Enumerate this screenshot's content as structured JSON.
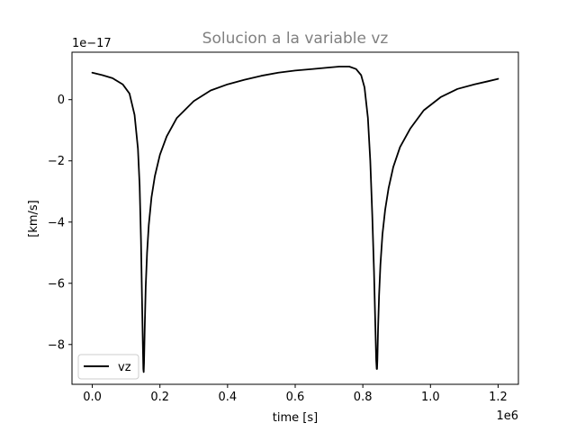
{
  "chart_data": {
    "type": "line",
    "title": "Solucion a la variable vz",
    "xlabel": "time [s]",
    "ylabel": "[km/s]",
    "x_offset_label": "1e6",
    "y_offset_label": "1e−17",
    "xlim": [
      -60000,
      1260000
    ],
    "ylim": [
      -9.3,
      1.55
    ],
    "grid": false,
    "legend_position": "lower-left",
    "x_ticks": [
      {
        "value": 0,
        "label": "0.0"
      },
      {
        "value": 200000,
        "label": "0.2"
      },
      {
        "value": 400000,
        "label": "0.4"
      },
      {
        "value": 600000,
        "label": "0.6"
      },
      {
        "value": 800000,
        "label": "0.8"
      },
      {
        "value": 1000000,
        "label": "1.0"
      },
      {
        "value": 1200000,
        "label": "1.2"
      }
    ],
    "y_ticks": [
      {
        "value": 0,
        "label": "0"
      },
      {
        "value": -2,
        "label": "−2"
      },
      {
        "value": -4,
        "label": "−4"
      },
      {
        "value": -6,
        "label": "−6"
      },
      {
        "value": -8,
        "label": "−8"
      }
    ],
    "series": [
      {
        "name": "vz",
        "color": "#000000",
        "x": [
          0,
          30000,
          60000,
          90000,
          110000,
          125000,
          135000,
          140000,
          144000,
          147000,
          149500,
          151000,
          152000,
          153000,
          155000,
          158000,
          162000,
          167000,
          175000,
          185000,
          200000,
          220000,
          250000,
          300000,
          350000,
          400000,
          450000,
          500000,
          550000,
          600000,
          650000,
          700000,
          730000,
          760000,
          780000,
          795000,
          805000,
          815000,
          822000,
          828000,
          833000,
          837000,
          839500,
          841000,
          842000,
          843000,
          845000,
          848000,
          852000,
          858000,
          866000,
          876000,
          890000,
          910000,
          940000,
          980000,
          1030000,
          1080000,
          1130000,
          1170000,
          1200000
        ],
        "y": [
          0.88,
          0.8,
          0.7,
          0.5,
          0.2,
          -0.5,
          -1.6,
          -2.8,
          -4.6,
          -6.5,
          -8.0,
          -8.8,
          -8.9,
          -8.6,
          -7.5,
          -6.1,
          -5.0,
          -4.1,
          -3.2,
          -2.5,
          -1.8,
          -1.2,
          -0.6,
          -0.05,
          0.3,
          0.5,
          0.65,
          0.78,
          0.88,
          0.95,
          1.0,
          1.05,
          1.08,
          1.08,
          1.0,
          0.8,
          0.4,
          -0.6,
          -2.0,
          -3.8,
          -5.6,
          -7.4,
          -8.5,
          -8.8,
          -8.8,
          -8.5,
          -7.5,
          -6.4,
          -5.4,
          -4.4,
          -3.6,
          -2.9,
          -2.2,
          -1.55,
          -0.95,
          -0.35,
          0.08,
          0.35,
          0.5,
          0.6,
          0.68
        ]
      }
    ]
  }
}
